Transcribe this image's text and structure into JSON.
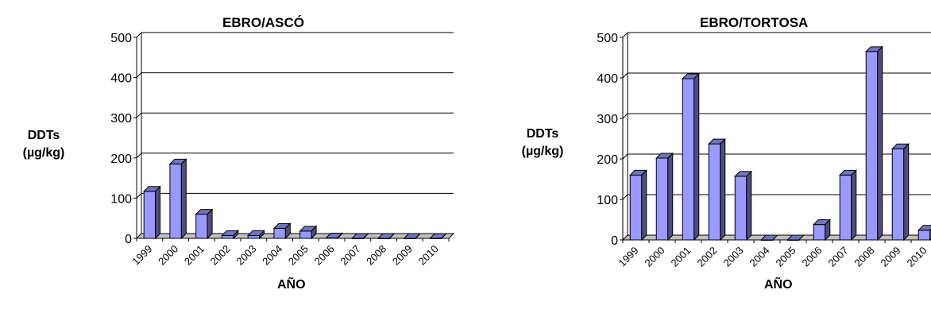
{
  "chart_data": [
    {
      "type": "bar",
      "title": "EBRO/ASCÓ",
      "ylabel_line1": "DDTs",
      "ylabel_line2": "(µg/kg)",
      "xlabel": "AÑO",
      "categories": [
        "1999",
        "2000",
        "2001",
        "2002",
        "2003",
        "2004",
        "2005",
        "2006",
        "2007",
        "2008",
        "2009",
        "2010"
      ],
      "values": [
        117,
        185,
        60,
        7,
        7,
        25,
        18,
        1,
        0,
        0,
        0,
        0
      ],
      "yticks": [
        0,
        100,
        200,
        300,
        400,
        500
      ],
      "ylim": [
        0,
        500
      ],
      "grid": true,
      "bar_color": "#9999ff"
    },
    {
      "type": "bar",
      "title": "EBRO/TORTOSA",
      "ylabel_line1": "DDTs",
      "ylabel_line2": "(µg/kg)",
      "xlabel": "AÑO",
      "categories": [
        "1999",
        "2000",
        "2001",
        "2002",
        "2003",
        "2004",
        "2005",
        "2006",
        "2007",
        "2008",
        "2009",
        "2010"
      ],
      "values": [
        160,
        202,
        398,
        237,
        157,
        0,
        0,
        38,
        160,
        465,
        225,
        24
      ],
      "yticks": [
        0,
        100,
        200,
        300,
        400,
        500
      ],
      "ylim": [
        0,
        500
      ],
      "grid": true,
      "bar_color": "#9999ff"
    }
  ]
}
